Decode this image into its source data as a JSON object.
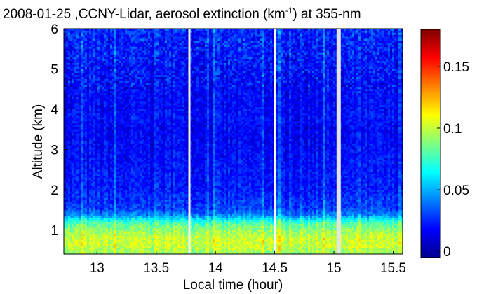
{
  "chart_data": {
    "type": "heatmap",
    "title": {
      "main": "2008-01-25 ,CCNY-Lidar, aerosol extinction (km",
      "superscript": "-1",
      "suffix": ") at 355-nm"
    },
    "xlabel": "Local time (hour)",
    "ylabel": "Altitude (km)",
    "xlim": [
      12.72,
      15.58
    ],
    "ylim": [
      0.4,
      6
    ],
    "xticks": [
      13,
      13.5,
      14,
      14.5,
      15,
      15.5
    ],
    "xtick_labels": [
      "13",
      "13.5",
      "14",
      "14.5",
      "15",
      "15.5"
    ],
    "yticks": [
      1,
      2,
      3,
      4,
      5,
      6
    ],
    "ytick_labels": [
      "1",
      "2",
      "3",
      "4",
      "5",
      "6"
    ],
    "colorbar": {
      "range": [
        -0.005,
        0.18
      ],
      "ticks": [
        0,
        0.05,
        0.1,
        0.15
      ],
      "tick_labels": [
        "0",
        "0.05",
        "0.1",
        "0.15"
      ],
      "colormap": "jet"
    },
    "data_gaps_hours": [
      13.78,
      14.5,
      15.04
    ],
    "profile": {
      "altitude_km": [
        0.4,
        0.6,
        0.8,
        1.0,
        1.2,
        1.35,
        1.5,
        2.0,
        2.5,
        3.0,
        3.5,
        3.8,
        4.0,
        4.5,
        5.0,
        5.5,
        6.0
      ],
      "extinction_per_km": [
        0.09,
        0.1,
        0.1,
        0.09,
        0.075,
        0.045,
        0.03,
        0.022,
        0.02,
        0.018,
        0.016,
        0.02,
        0.017,
        0.018,
        0.02,
        0.022,
        0.025
      ]
    },
    "grid": false
  }
}
